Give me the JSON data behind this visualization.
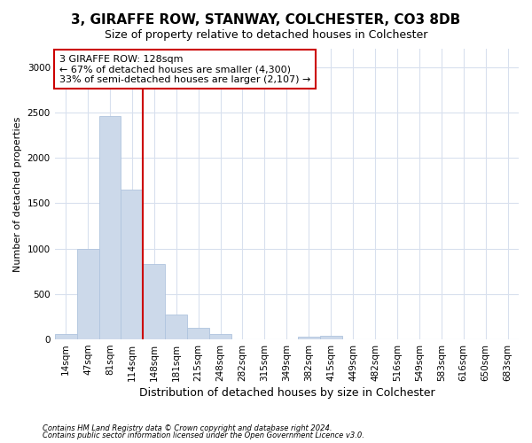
{
  "title": "3, GIRAFFE ROW, STANWAY, COLCHESTER, CO3 8DB",
  "subtitle": "Size of property relative to detached houses in Colchester",
  "xlabel": "Distribution of detached houses by size in Colchester",
  "ylabel": "Number of detached properties",
  "footer_line1": "Contains HM Land Registry data © Crown copyright and database right 2024.",
  "footer_line2": "Contains public sector information licensed under the Open Government Licence v3.0.",
  "categories": [
    "14sqm",
    "47sqm",
    "81sqm",
    "114sqm",
    "148sqm",
    "181sqm",
    "215sqm",
    "248sqm",
    "282sqm",
    "315sqm",
    "349sqm",
    "382sqm",
    "415sqm",
    "449sqm",
    "482sqm",
    "516sqm",
    "549sqm",
    "583sqm",
    "616sqm",
    "650sqm",
    "683sqm"
  ],
  "values": [
    55,
    1000,
    2460,
    1650,
    830,
    270,
    130,
    55,
    0,
    0,
    0,
    30,
    40,
    0,
    0,
    0,
    0,
    0,
    0,
    0,
    0
  ],
  "bar_color": "#ccd9ea",
  "bar_edge_color": "#b0c4de",
  "grid_color": "#d8e0ee",
  "background_color": "#ffffff",
  "axes_bg_color": "#ffffff",
  "vline_color": "#cc0000",
  "annotation_text": "3 GIRAFFE ROW: 128sqm\n← 67% of detached houses are smaller (4,300)\n33% of semi-detached houses are larger (2,107) →",
  "annotation_box_color": "#ffffff",
  "annotation_box_edge": "#cc0000",
  "ylim": [
    0,
    3200
  ],
  "yticks": [
    0,
    500,
    1000,
    1500,
    2000,
    2500,
    3000
  ],
  "title_fontsize": 11,
  "subtitle_fontsize": 9,
  "xlabel_fontsize": 9,
  "ylabel_fontsize": 8,
  "tick_fontsize": 7.5,
  "annotation_fontsize": 8
}
